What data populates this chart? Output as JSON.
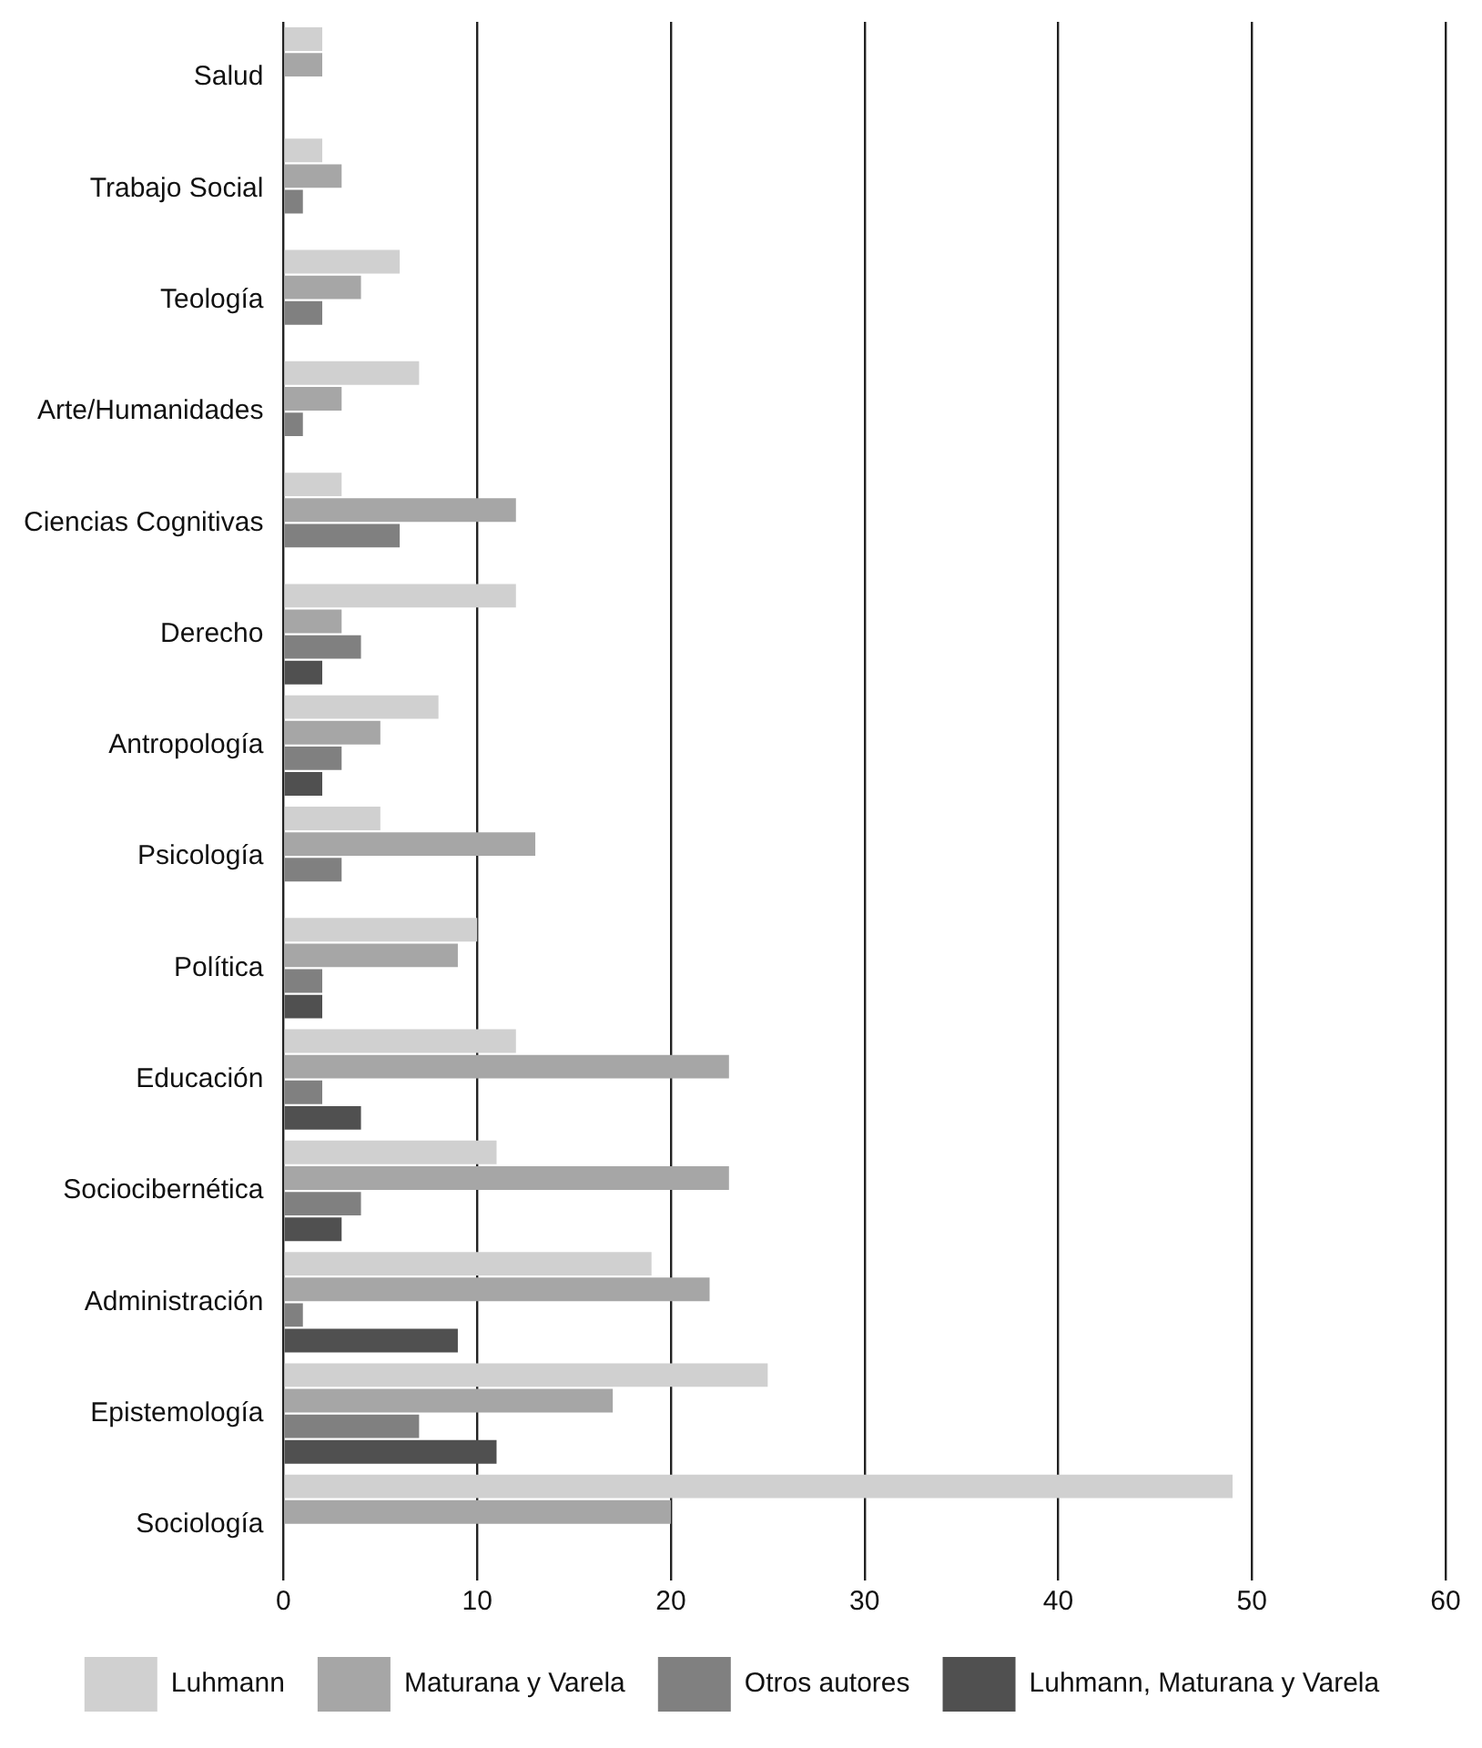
{
  "chart_data": {
    "type": "bar",
    "orientation": "horizontal",
    "categories": [
      "Salud",
      "Trabajo Social",
      "Teología",
      "Arte/Humanidades",
      "Ciencias Cognitivas",
      "Derecho",
      "Antropología",
      "Psicología",
      "Política",
      "Educación",
      "Sociocibernética",
      "Administración",
      "Epistemología",
      "Sociología"
    ],
    "series": [
      {
        "name": "Luhmann",
        "color": "#d0d0d0",
        "values": [
          2,
          2,
          6,
          7,
          3,
          12,
          8,
          5,
          10,
          12,
          11,
          19,
          25,
          49
        ]
      },
      {
        "name": "Maturana y Varela",
        "color": "#a6a6a6",
        "values": [
          2,
          3,
          4,
          3,
          12,
          3,
          5,
          13,
          9,
          23,
          23,
          22,
          17,
          20
        ]
      },
      {
        "name": "Otros autores",
        "color": "#808080",
        "values": [
          0,
          1,
          2,
          1,
          6,
          4,
          3,
          3,
          2,
          2,
          4,
          1,
          7,
          0
        ]
      },
      {
        "name": "Luhmann, Maturana y Varela",
        "color": "#505050",
        "values": [
          0,
          0,
          0,
          0,
          0,
          2,
          2,
          0,
          2,
          4,
          3,
          9,
          11,
          0
        ]
      }
    ],
    "xlim": [
      0,
      60
    ],
    "xticks": [
      0,
      10,
      20,
      30,
      40,
      50,
      60
    ],
    "grid": "x",
    "legend": "bottom"
  }
}
